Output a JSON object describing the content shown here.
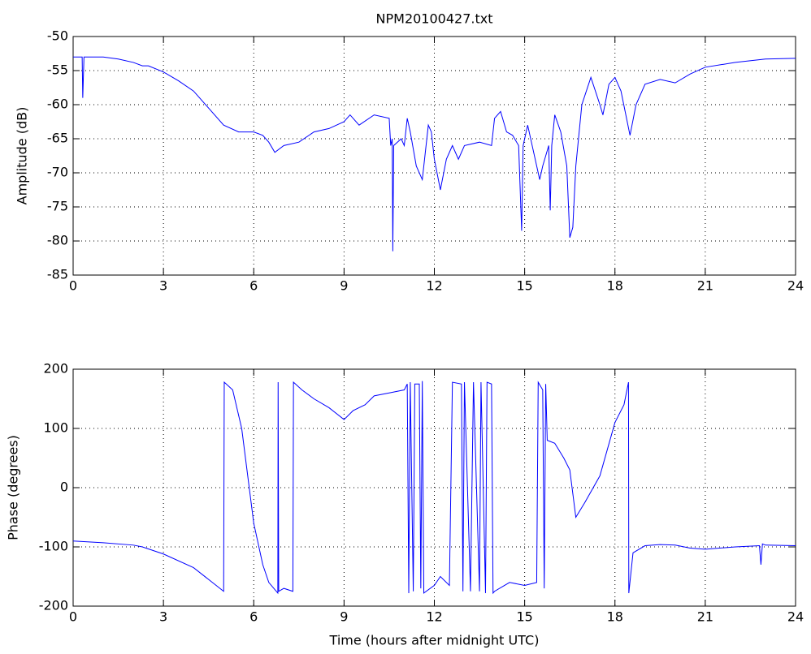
{
  "chart_data": [
    {
      "type": "line",
      "title": "NPM20100427.txt",
      "ylabel": "Amplitude (dB)",
      "color": "#0000ff",
      "grid": true,
      "xlim": [
        0,
        24
      ],
      "xticks": [
        0,
        3,
        6,
        9,
        12,
        15,
        18,
        21,
        24
      ],
      "ylim": [
        -85,
        -50
      ],
      "yticks": [
        -85,
        -80,
        -75,
        -70,
        -65,
        -60,
        -55,
        -50
      ],
      "x": [
        0,
        0.3,
        0.32,
        0.36,
        1,
        1.5,
        2,
        2.3,
        2.5,
        3,
        3.5,
        4,
        4.5,
        5,
        5.5,
        6,
        6.3,
        6.5,
        6.7,
        7,
        7.5,
        8,
        8.5,
        9,
        9.2,
        9.5,
        10,
        10.5,
        10.55,
        10.6,
        10.62,
        10.65,
        10.9,
        11,
        11.1,
        11.2,
        11.4,
        11.6,
        11.8,
        11.9,
        12,
        12.2,
        12.4,
        12.6,
        12.8,
        13,
        13.5,
        13.9,
        14,
        14.2,
        14.4,
        14.6,
        14.8,
        14.9,
        14.95,
        15.1,
        15.3,
        15.5,
        15.6,
        15.8,
        15.85,
        15.9,
        16,
        16.2,
        16.4,
        16.5,
        16.6,
        16.7,
        16.9,
        17.2,
        17.5,
        17.6,
        17.8,
        18,
        18.2,
        18.5,
        18.7,
        19,
        19.5,
        20,
        20.5,
        21,
        22,
        23,
        24
      ],
      "values": [
        -53,
        -53,
        -59,
        -53,
        -53,
        -53.3,
        -53.8,
        -54.3,
        -54.3,
        -55.2,
        -56.5,
        -58,
        -60.5,
        -63,
        -64,
        -64,
        -64.5,
        -65.5,
        -67,
        -66,
        -65.5,
        -64,
        -63.5,
        -62.5,
        -61.5,
        -63,
        -61.5,
        -62,
        -66,
        -65,
        -81.5,
        -66,
        -65,
        -66,
        -62,
        -64,
        -69,
        -71,
        -63,
        -64,
        -68,
        -72.5,
        -68,
        -66,
        -68,
        -66,
        -65.5,
        -66,
        -62,
        -61,
        -64,
        -64.5,
        -66,
        -78.5,
        -66,
        -63,
        -67,
        -71,
        -69,
        -66,
        -75.5,
        -66,
        -61.5,
        -64,
        -69,
        -79.5,
        -78,
        -69,
        -60,
        -56,
        -60,
        -61.5,
        -57,
        -56,
        -58,
        -64.5,
        -60,
        -57,
        -56.3,
        -56.8,
        -55.5,
        -54.5,
        -53.8,
        -53.3,
        -53.2
      ]
    },
    {
      "type": "line",
      "xlabel": "Time (hours after midnight UTC)",
      "ylabel": "Phase (degrees)",
      "color": "#0000ff",
      "grid": true,
      "xlim": [
        0,
        24
      ],
      "xticks": [
        0,
        3,
        6,
        9,
        12,
        15,
        18,
        21,
        24
      ],
      "ylim": [
        -200,
        200
      ],
      "yticks": [
        -200,
        -100,
        0,
        100,
        200
      ],
      "x": [
        0,
        1,
        2,
        2.3,
        3,
        4,
        4.5,
        5,
        5.02,
        5.3,
        5.6,
        5.8,
        6,
        6.3,
        6.5,
        6.8,
        6.81,
        6.83,
        7,
        7.3,
        7.32,
        7.6,
        8,
        8.5,
        9,
        9.3,
        9.7,
        10,
        10.5,
        11,
        11.1,
        11.15,
        11.2,
        11.3,
        11.35,
        11.5,
        11.55,
        11.6,
        11.65,
        12,
        12.2,
        12.5,
        12.6,
        12.9,
        12.95,
        13,
        13.2,
        13.3,
        13.5,
        13.55,
        13.7,
        13.75,
        13.9,
        13.95,
        14,
        14.5,
        15,
        15.4,
        15.45,
        15.6,
        15.65,
        15.7,
        15.75,
        16,
        16.3,
        16.5,
        16.7,
        17,
        17.5,
        18,
        18.3,
        18.45,
        18.46,
        18.6,
        19,
        19.5,
        20,
        20.5,
        21,
        22,
        22.8,
        22.85,
        22.9,
        23,
        24
      ],
      "values": [
        -90,
        -93,
        -97,
        -100,
        -112,
        -135,
        -155,
        -175,
        178,
        165,
        100,
        20,
        -60,
        -130,
        -160,
        -178,
        178,
        -175,
        -170,
        -175,
        178,
        165,
        150,
        135,
        115,
        130,
        140,
        155,
        160,
        165,
        175,
        -178,
        178,
        -175,
        175,
        175,
        -170,
        180,
        -178,
        -165,
        -150,
        -165,
        178,
        175,
        -175,
        178,
        -175,
        178,
        -175,
        178,
        -178,
        178,
        175,
        -178,
        -175,
        -160,
        -165,
        -160,
        178,
        165,
        -170,
        175,
        80,
        75,
        50,
        30,
        -50,
        -25,
        20,
        110,
        140,
        178,
        -178,
        -110,
        -98,
        -96,
        -97,
        -102,
        -104,
        -100,
        -98,
        -130,
        -95,
        -97,
        -98
      ]
    }
  ]
}
